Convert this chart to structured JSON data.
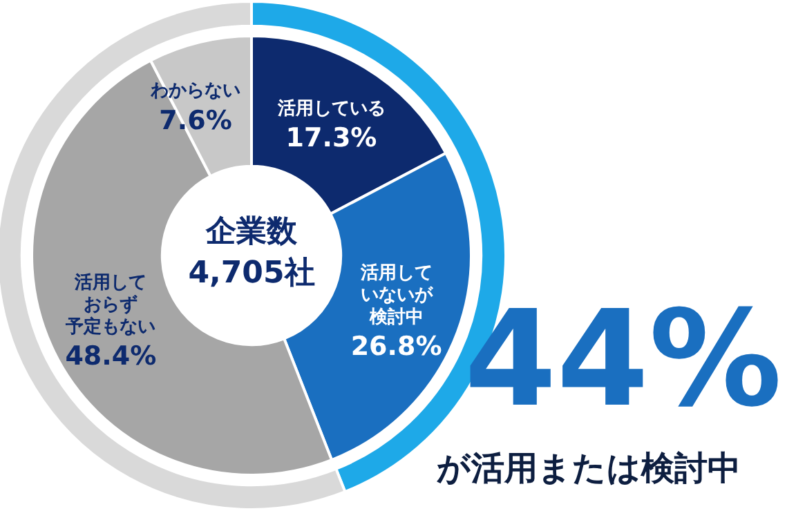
{
  "chart_data": [
    {
      "type": "donut",
      "categories": [
        null,
        null
      ],
      "values": [
        44,
        56
      ],
      "colors": [
        "#1ea9e8",
        "#d9d9d9"
      ]
    },
    {
      "type": "donut",
      "categories": [
        "活用している",
        "活用していないが検討中",
        "活用しておらず予定もない",
        "わからない"
      ],
      "values": [
        17.3,
        26.8,
        48.4,
        7.6
      ],
      "colors": [
        "#0d2a6e",
        "#1a6fc0",
        "#a6a6a6",
        "#c8c8c8"
      ],
      "value_labels": [
        "17.3%",
        "26.8%",
        "48.4%",
        "7.6%"
      ],
      "annotations": [
        "企業数",
        "4,705社"
      ]
    },
    {
      "type": "other",
      "annotations": [
        "44%",
        "が活用または検討中"
      ]
    }
  ]
}
